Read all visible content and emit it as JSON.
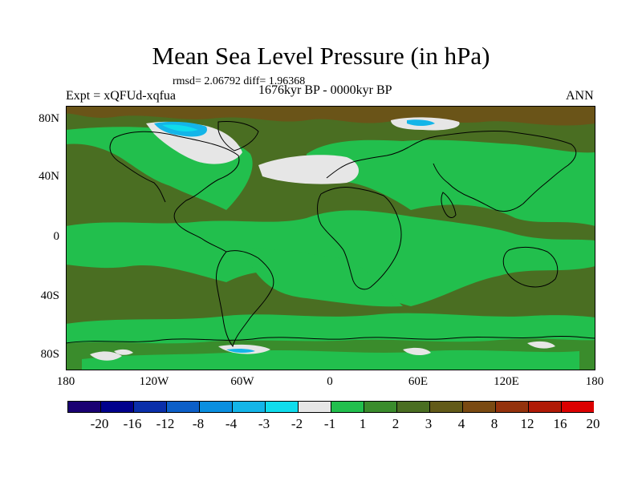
{
  "title": "Mean Sea Level Pressure (in hPa)",
  "stats": "rmsd= 2.06792 diff= 1.96368",
  "experiment": "Expt = xQFUd-xqfua",
  "period": "1676kyr BP - 0000kyr BP",
  "season": "ANN",
  "lat_labels": [
    "80N",
    "40N",
    "0",
    "40S",
    "80S"
  ],
  "lon_labels": [
    "180",
    "120W",
    "60W",
    "0",
    "60E",
    "120E",
    "180"
  ],
  "colorbar": {
    "colors": [
      "#1a0072",
      "#00008c",
      "#0a2faa",
      "#0c5fc8",
      "#0a8fe0",
      "#14b5e8",
      "#10dcec",
      "#e6e6e6",
      "#22bf4d",
      "#3a8c2c",
      "#4a6e22",
      "#625a18",
      "#7a4a12",
      "#94320c",
      "#b01a06",
      "#dc0000"
    ],
    "labels": [
      "-20",
      "-16",
      "-12",
      "-8",
      "-4",
      "-3",
      "-2",
      "-1",
      "1",
      "2",
      "3",
      "4",
      "8",
      "12",
      "16",
      "20"
    ]
  },
  "field_colors": {
    "green": "#22bf4d",
    "darkgreen": "#3a8c2c",
    "olive": "#4a6e22",
    "brown": "#6a5418",
    "white": "#e6e6e6",
    "cyan": "#10dcec",
    "lightblue": "#14b5e8"
  }
}
